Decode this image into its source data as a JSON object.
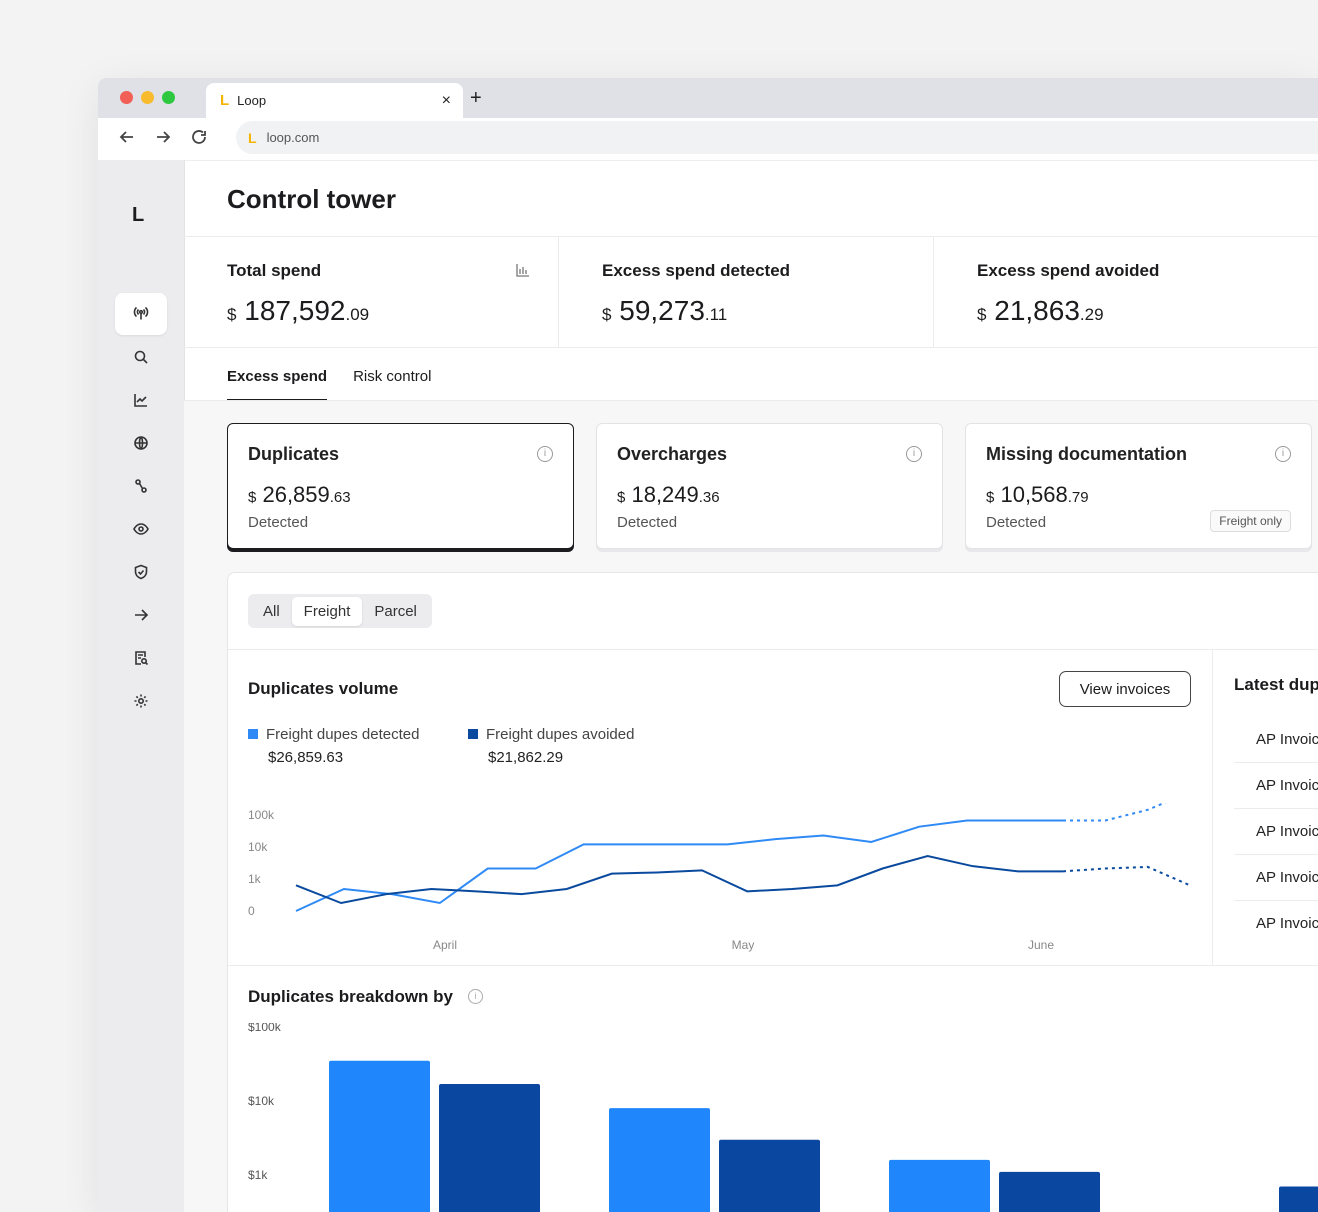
{
  "browser": {
    "tab_title": "Loop",
    "tab_logo": "L",
    "url": "loop.com",
    "new_tab": "+",
    "close": "×"
  },
  "sidebar": {
    "logo": "L"
  },
  "page": {
    "title": "Control tower"
  },
  "kpis": [
    {
      "label": "Total spend",
      "currency": "$",
      "whole": "187,592",
      "cents": ".09"
    },
    {
      "label": "Excess spend detected",
      "currency": "$",
      "whole": "59,273",
      "cents": ".11"
    },
    {
      "label": "Excess spend avoided",
      "currency": "$",
      "whole": "21,863",
      "cents": ".29"
    }
  ],
  "tabs": [
    "Excess spend",
    "Risk control"
  ],
  "cards": [
    {
      "title": "Duplicates",
      "currency": "$",
      "whole": "26,859",
      "cents": ".63",
      "status": "Detected"
    },
    {
      "title": "Overcharges",
      "currency": "$",
      "whole": "18,249",
      "cents": ".36",
      "status": "Detected"
    },
    {
      "title": "Missing documentation",
      "currency": "$",
      "whole": "10,568",
      "cents": ".79",
      "status": "Detected",
      "badge": "Freight only"
    }
  ],
  "segment": [
    "All",
    "Freight",
    "Parcel"
  ],
  "volume": {
    "title": "Duplicates volume",
    "view_button": "View invoices",
    "legend": [
      {
        "name": "Freight dupes detected",
        "amount": "$26,859.63",
        "color": "#2f8af5"
      },
      {
        "name": "Freight dupes avoided",
        "amount": "$21,862.29",
        "color": "#0a4a9e"
      }
    ]
  },
  "latest": {
    "title": "Latest duplicates",
    "items": [
      "AP Invoice",
      "AP Invoice",
      "AP Invoice",
      "AP Invoice",
      "AP Invoice"
    ]
  },
  "breakdown": {
    "title": "Duplicates breakdown by"
  },
  "chart_data": [
    {
      "type": "line",
      "title": "Duplicates volume",
      "y_ticks": [
        "100k",
        "10k",
        "1k",
        "0"
      ],
      "x_labels": [
        "April",
        "May",
        "June"
      ],
      "scale": "log",
      "series": [
        {
          "name": "Freight dupes detected",
          "color": "#2f8af5",
          "values": [
            0,
            300,
            200,
            100,
            1500,
            1500,
            10000,
            10000,
            10000,
            10000,
            15000,
            20000,
            12000,
            40000,
            65000,
            65000,
            65000
          ],
          "projection": [
            65000,
            65000,
            150000,
            600000
          ]
        },
        {
          "name": "Freight dupes avoided",
          "color": "#0a4a9e",
          "values": [
            400,
            100,
            200,
            300,
            250,
            200,
            300,
            1000,
            1100,
            1300,
            250,
            300,
            400,
            1500,
            4000,
            1800,
            1200,
            1200
          ],
          "projection": [
            1200,
            1500,
            1700,
            400
          ]
        }
      ]
    },
    {
      "type": "bar",
      "title": "Duplicates breakdown by",
      "scale": "log",
      "y_ticks": [
        "$100k",
        "$10k",
        "$1k"
      ],
      "series": [
        {
          "name": "Freight dupes detected",
          "color": "#1f87fb",
          "values": [
            35000,
            8000,
            1600,
            300
          ]
        },
        {
          "name": "Freight dupes avoided",
          "color": "#0a47a0",
          "values": [
            17000,
            3000,
            1100,
            700
          ]
        }
      ]
    }
  ]
}
